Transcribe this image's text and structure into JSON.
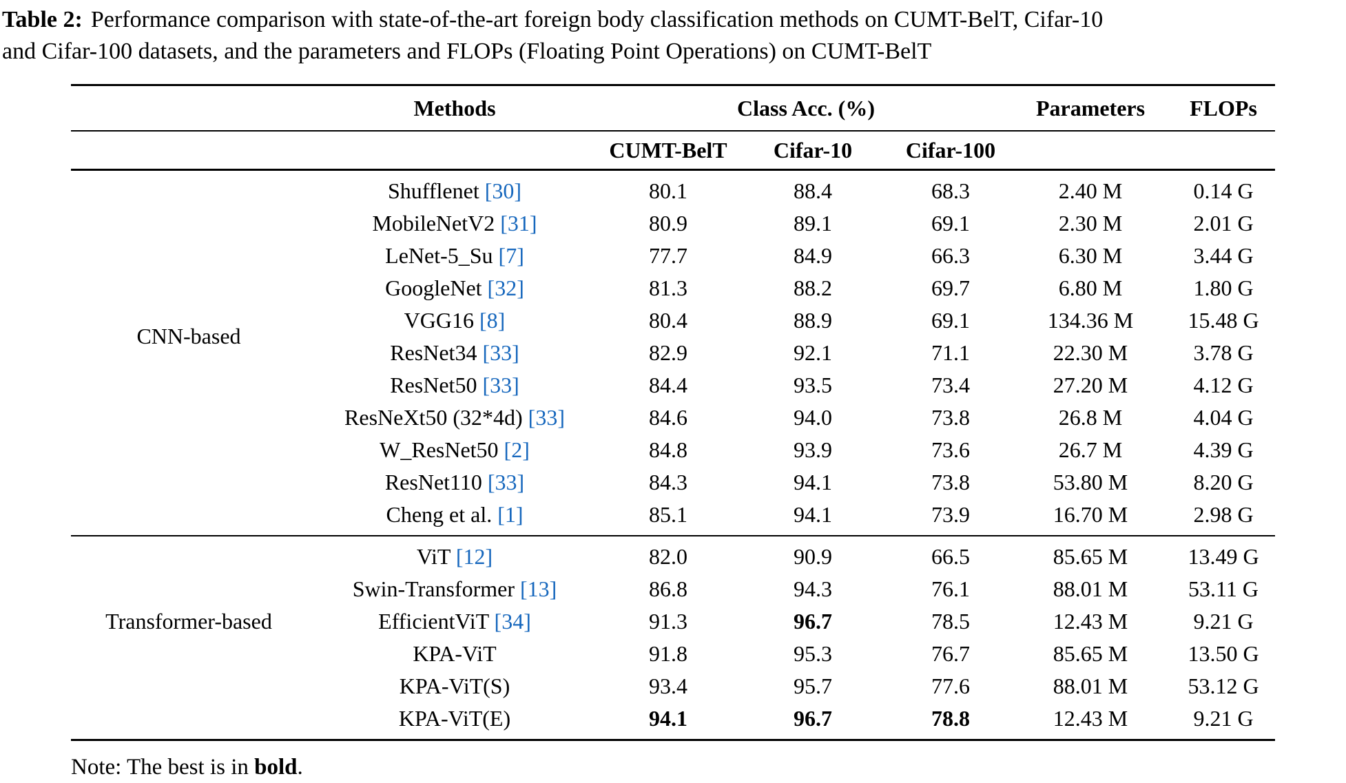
{
  "caption": {
    "label": "Table 2:",
    "line1": "Performance comparison with state-of-the-art foreign body classification methods on CUMT-BelT, Cifar-10",
    "line2": "and Cifar-100 datasets, and the parameters and FLOPs (Floating Point Operations) on CUMT-BelT"
  },
  "table": {
    "header": {
      "methods": "Methods",
      "class_acc": "Class Acc. (%)",
      "parameters": "Parameters",
      "flops": "FLOPs",
      "datasets": [
        "CUMT-BelT",
        "Cifar-10",
        "Cifar-100"
      ]
    },
    "groups": [
      {
        "label": "CNN-based",
        "rows": [
          {
            "method": "Shufflenet",
            "cite": "[30]",
            "cumt": "80.1",
            "cifar10": "88.4",
            "cifar100": "68.3",
            "params": "2.40 M",
            "flops": "0.14 G",
            "bold": []
          },
          {
            "method": "MobileNetV2",
            "cite": "[31]",
            "cumt": "80.9",
            "cifar10": "89.1",
            "cifar100": "69.1",
            "params": "2.30 M",
            "flops": "2.01 G",
            "bold": []
          },
          {
            "method": "LeNet-5_Su",
            "cite": "[7]",
            "cumt": "77.7",
            "cifar10": "84.9",
            "cifar100": "66.3",
            "params": "6.30 M",
            "flops": "3.44 G",
            "bold": []
          },
          {
            "method": "GoogleNet",
            "cite": "[32]",
            "cumt": "81.3",
            "cifar10": "88.2",
            "cifar100": "69.7",
            "params": "6.80 M",
            "flops": "1.80 G",
            "bold": []
          },
          {
            "method": "VGG16",
            "cite": "[8]",
            "cumt": "80.4",
            "cifar10": "88.9",
            "cifar100": "69.1",
            "params": "134.36 M",
            "flops": "15.48 G",
            "bold": []
          },
          {
            "method": "ResNet34",
            "cite": "[33]",
            "cumt": "82.9",
            "cifar10": "92.1",
            "cifar100": "71.1",
            "params": "22.30 M",
            "flops": "3.78 G",
            "bold": []
          },
          {
            "method": "ResNet50",
            "cite": "[33]",
            "cumt": "84.4",
            "cifar10": "93.5",
            "cifar100": "73.4",
            "params": "27.20 M",
            "flops": "4.12 G",
            "bold": []
          },
          {
            "method": "ResNeXt50 (32*4d)",
            "cite": "[33]",
            "cumt": "84.6",
            "cifar10": "94.0",
            "cifar100": "73.8",
            "params": "26.8 M",
            "flops": "4.04 G",
            "bold": []
          },
          {
            "method": "W_ResNet50",
            "cite": "[2]",
            "cumt": "84.8",
            "cifar10": "93.9",
            "cifar100": "73.6",
            "params": "26.7 M",
            "flops": "4.39 G",
            "bold": []
          },
          {
            "method": "ResNet110",
            "cite": "[33]",
            "cumt": "84.3",
            "cifar10": "94.1",
            "cifar100": "73.8",
            "params": "53.80 M",
            "flops": "8.20 G",
            "bold": []
          },
          {
            "method": "Cheng et al.",
            "cite": "[1]",
            "cumt": "85.1",
            "cifar10": "94.1",
            "cifar100": "73.9",
            "params": "16.70 M",
            "flops": "2.98 G",
            "bold": []
          }
        ]
      },
      {
        "label": "Transformer-based",
        "rows": [
          {
            "method": "ViT",
            "cite": "[12]",
            "cumt": "82.0",
            "cifar10": "90.9",
            "cifar100": "66.5",
            "params": "85.65 M",
            "flops": "13.49 G",
            "bold": []
          },
          {
            "method": "Swin-Transformer",
            "cite": "[13]",
            "cumt": "86.8",
            "cifar10": "94.3",
            "cifar100": "76.1",
            "params": "88.01 M",
            "flops": "53.11 G",
            "bold": []
          },
          {
            "method": "EfficientViT",
            "cite": "[34]",
            "cumt": "91.3",
            "cifar10": "96.7",
            "cifar100": "78.5",
            "params": "12.43 M",
            "flops": "9.21 G",
            "bold": [
              "cifar10"
            ]
          },
          {
            "method": "KPA-ViT",
            "cite": "",
            "cumt": "91.8",
            "cifar10": "95.3",
            "cifar100": "76.7",
            "params": "85.65 M",
            "flops": "13.50 G",
            "bold": []
          },
          {
            "method": "KPA-ViT(S)",
            "cite": "",
            "cumt": "93.4",
            "cifar10": "95.7",
            "cifar100": "77.6",
            "params": "88.01 M",
            "flops": "53.12 G",
            "bold": []
          },
          {
            "method": "KPA-ViT(E)",
            "cite": "",
            "cumt": "94.1",
            "cifar10": "96.7",
            "cifar100": "78.8",
            "params": "12.43 M",
            "flops": "9.21 G",
            "bold": [
              "cumt",
              "cifar10",
              "cifar100"
            ]
          }
        ]
      }
    ]
  },
  "note": {
    "prefix": "Note: The best is in ",
    "bold": "bold",
    "suffix": "."
  },
  "colors": {
    "citation_blue": "#1667bd",
    "text_black": "#000000",
    "rule_black": "#000000"
  }
}
